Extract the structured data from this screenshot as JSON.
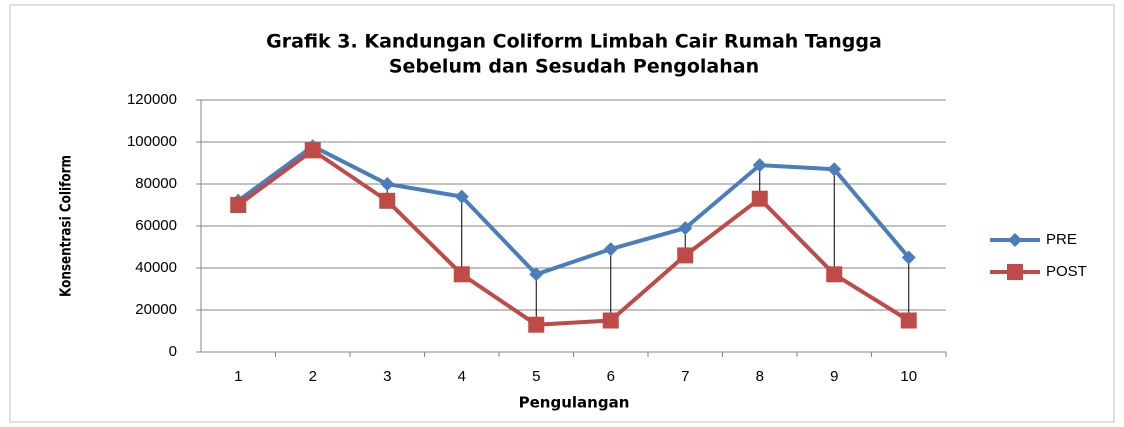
{
  "chart_data": {
    "type": "line",
    "title": [
      "Grafik 3. Kandungan Coliform Limbah Cair Rumah Tangga",
      "Sebelum dan Sesudah Pengolahan"
    ],
    "x_label": "Pengulangan",
    "y_label": "Konsentrasi Coliform",
    "categories": [
      "1",
      "2",
      "3",
      "4",
      "5",
      "6",
      "7",
      "8",
      "9",
      "10"
    ],
    "series": [
      {
        "name": "PRE",
        "color": "#4a7ebb",
        "marker": "diamond",
        "values": [
          72000,
          98000,
          80000,
          74000,
          37000,
          49000,
          59000,
          89000,
          87000,
          45000
        ]
      },
      {
        "name": "POST",
        "color": "#be4b48",
        "marker": "square",
        "values": [
          70000,
          96000,
          72000,
          37000,
          13000,
          15000,
          46000,
          73000,
          37000,
          15000
        ]
      }
    ],
    "ylim": [
      0,
      120000
    ],
    "yticks": [
      0,
      20000,
      40000,
      60000,
      80000,
      100000,
      120000
    ],
    "grid": true,
    "high_low_lines": true,
    "legend": "right"
  }
}
